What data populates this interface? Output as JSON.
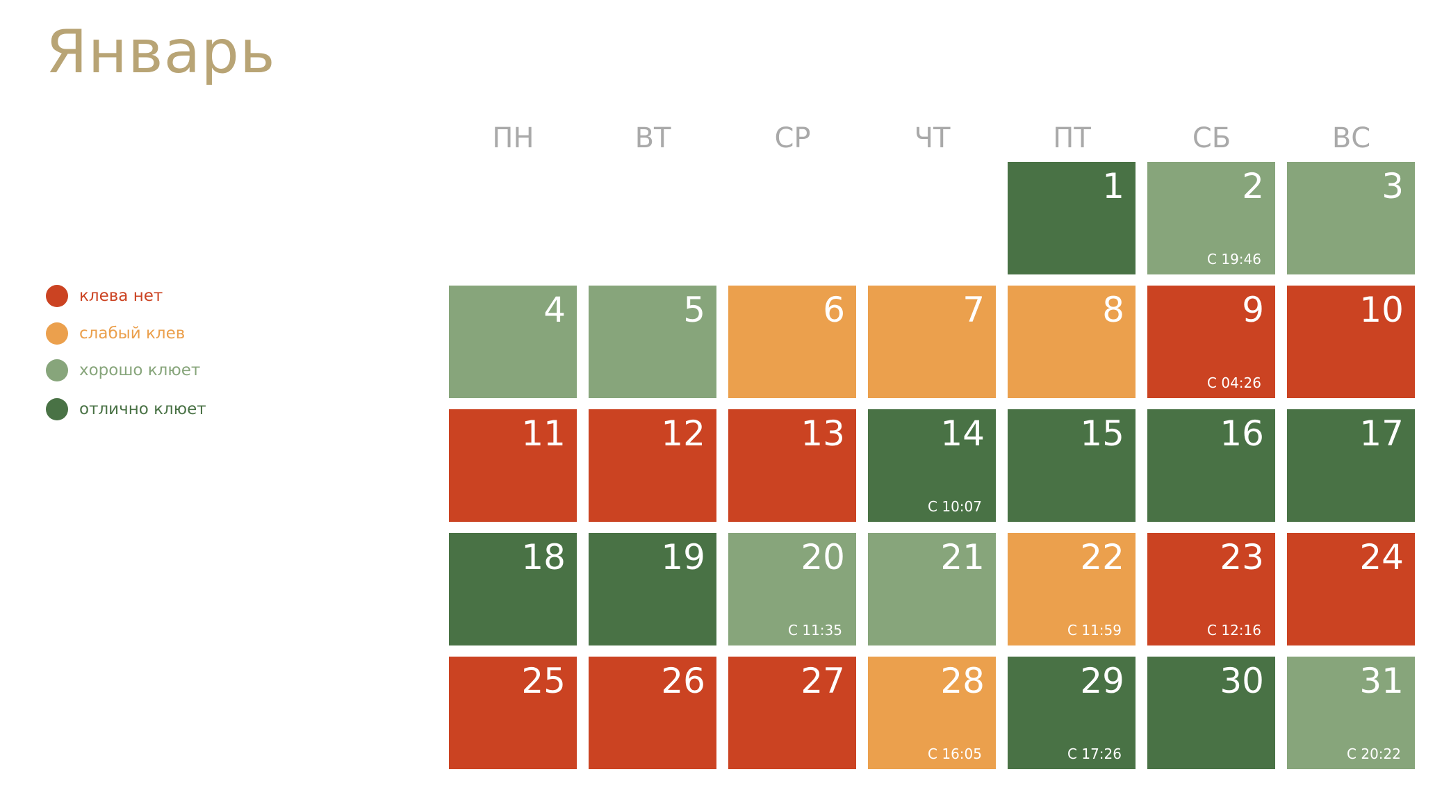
{
  "title": "Январь",
  "legend": [
    {
      "label": "клева нет",
      "color": "#cb4322"
    },
    {
      "label": "слабый клев",
      "color": "#eba04d"
    },
    {
      "label": "хорошо клюет",
      "color": "#87a57b"
    },
    {
      "label": "отлично клюет",
      "color": "#497245"
    }
  ],
  "weekdays": [
    "ПН",
    "ВТ",
    "СР",
    "ЧТ",
    "ПТ",
    "СБ",
    "ВС"
  ],
  "first_weekday_index": 4,
  "days": [
    {
      "day": "1",
      "level": 3,
      "note": ""
    },
    {
      "day": "2",
      "level": 2,
      "note": "С 19:46"
    },
    {
      "day": "3",
      "level": 2,
      "note": ""
    },
    {
      "day": "4",
      "level": 2,
      "note": ""
    },
    {
      "day": "5",
      "level": 2,
      "note": ""
    },
    {
      "day": "6",
      "level": 1,
      "note": ""
    },
    {
      "day": "7",
      "level": 1,
      "note": ""
    },
    {
      "day": "8",
      "level": 1,
      "note": ""
    },
    {
      "day": "9",
      "level": 0,
      "note": "С 04:26"
    },
    {
      "day": "10",
      "level": 0,
      "note": ""
    },
    {
      "day": "11",
      "level": 0,
      "note": ""
    },
    {
      "day": "12",
      "level": 0,
      "note": ""
    },
    {
      "day": "13",
      "level": 0,
      "note": ""
    },
    {
      "day": "14",
      "level": 3,
      "note": "С 10:07"
    },
    {
      "day": "15",
      "level": 3,
      "note": ""
    },
    {
      "day": "16",
      "level": 3,
      "note": ""
    },
    {
      "day": "17",
      "level": 3,
      "note": ""
    },
    {
      "day": "18",
      "level": 3,
      "note": ""
    },
    {
      "day": "19",
      "level": 3,
      "note": ""
    },
    {
      "day": "20",
      "level": 2,
      "note": "С 11:35"
    },
    {
      "day": "21",
      "level": 2,
      "note": ""
    },
    {
      "day": "22",
      "level": 1,
      "note": "С 11:59"
    },
    {
      "day": "23",
      "level": 0,
      "note": "С 12:16"
    },
    {
      "day": "24",
      "level": 0,
      "note": ""
    },
    {
      "day": "25",
      "level": 0,
      "note": ""
    },
    {
      "day": "26",
      "level": 0,
      "note": ""
    },
    {
      "day": "27",
      "level": 0,
      "note": ""
    },
    {
      "day": "28",
      "level": 1,
      "note": "С 16:05"
    },
    {
      "day": "29",
      "level": 3,
      "note": "С 17:26"
    },
    {
      "day": "30",
      "level": 3,
      "note": ""
    },
    {
      "day": "31",
      "level": 2,
      "note": "С 20:22"
    }
  ]
}
